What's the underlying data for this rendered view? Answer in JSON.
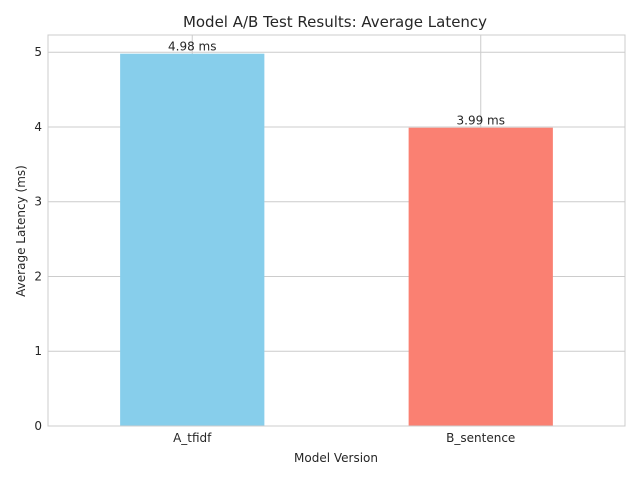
{
  "chart_data": {
    "type": "bar",
    "title": "Model A/B Test Results: Average Latency",
    "xlabel": "Model Version",
    "ylabel": "Average Latency (ms)",
    "categories": [
      "A_tfidf",
      "B_sentence"
    ],
    "values": [
      4.98,
      3.99
    ],
    "data_labels": [
      "4.98 ms",
      "3.99 ms"
    ],
    "colors": [
      "#87ceeb",
      "#fa8072"
    ],
    "ylim": [
      0,
      5.23
    ],
    "yticks": [
      0,
      1,
      2,
      3,
      4,
      5
    ],
    "ytick_labels": [
      "0",
      "1",
      "2",
      "3",
      "4",
      "5"
    ],
    "grid": true,
    "legend": "none"
  }
}
